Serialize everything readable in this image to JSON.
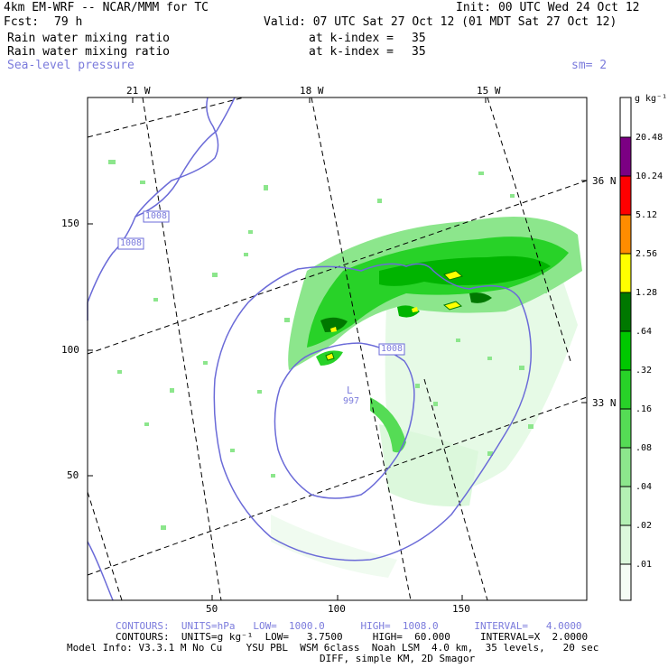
{
  "header": {
    "model": "4km EM-WRF -- NCAR/MMM for TC",
    "init": "Init: 00 UTC Wed 24 Oct 12",
    "fcst_label": "Fcst:",
    "fcst_value": "79 h",
    "valid": "Valid: 07 UTC Sat 27 Oct 12 (01 MDT Sat 27 Oct 12)",
    "field1": "Rain water mixing ratio",
    "field1_level": "at k-index =",
    "field1_k": "35",
    "field2": "Rain water mixing ratio",
    "field2_level": "at k-index =",
    "field2_k": "35",
    "field3": "Sea-level pressure",
    "smooth": "sm= 2"
  },
  "map": {
    "lon_labels": [
      "21 W",
      "18 W",
      "15 W"
    ],
    "lat_labels": [
      "36 N",
      "33 N"
    ],
    "y_ticks": [
      "150",
      "100",
      "50"
    ],
    "x_ticks": [
      "50",
      "100",
      "150"
    ],
    "isobar_labels": [
      "1008",
      "1008",
      "1008"
    ],
    "low_marker": "L",
    "low_value": "997"
  },
  "colorbar": {
    "unit": "g kg⁻¹",
    "labels": [
      "20.48",
      "10.24",
      "5.12",
      "2.56",
      "1.28",
      ".64",
      ".32",
      ".16",
      ".08",
      ".04",
      ".02",
      ".01"
    ],
    "colors": [
      "#7b0083",
      "#ff0000",
      "#ff8c00",
      "#ffff00",
      "#007800",
      "#00c800",
      "#28d228",
      "#55dc55",
      "#8ce68c",
      "#b4f0b4",
      "#dcf8dc",
      "#f5fdf5",
      "#ffffff"
    ]
  },
  "footer": {
    "contours_slp": "CONTOURS:  UNITS=hPa   LOW=  1000.0      HIGH=  1008.0      INTERVAL=   4.0000",
    "contours_rain": "CONTOURS:  UNITS=g kg⁻¹  LOW=   3.7500     HIGH=  60.000     INTERVAL=X  2.0000",
    "model_info": "Model Info: V3.3.1 M No Cu    YSU PBL  WSM 6class  Noah LSM  4.0 km,  35 levels,   20 sec",
    "diff_info": "DIFF, simple KM, 2D Smagor"
  }
}
